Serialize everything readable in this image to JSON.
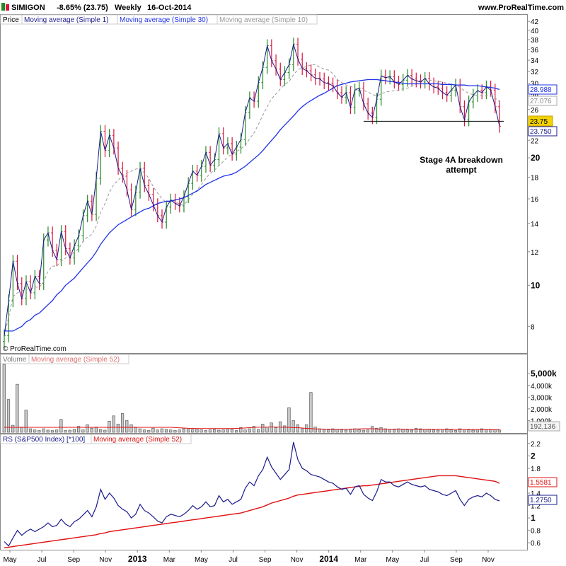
{
  "header": {
    "symbol": "SIMIGON",
    "change": "-8.65% (23.75)",
    "period": "Weekly",
    "date": "16-Oct-2014",
    "site": "www.ProRealTime.com"
  },
  "price_panel": {
    "legend": [
      "Price",
      "Moving average (Simple 1)",
      "Moving average (Simple 30)",
      "Moving average (Simple 10)"
    ],
    "copyright": "© ProRealTime.com",
    "annotation": [
      "Stage 4A breakdown",
      "attempt"
    ],
    "badges": [
      "28.988",
      "27.076",
      "23.75",
      "23.750"
    ]
  },
  "volume_panel": {
    "legend": [
      "Volume",
      "Moving average (Simple 52)"
    ],
    "badge": "192,136"
  },
  "rs_panel": {
    "legend": [
      "RS (S&P500 Index) [*100]",
      "Moving average (Simple 52)"
    ],
    "badges": [
      "1.5581",
      "1.2750"
    ]
  },
  "x_axis": {
    "labels": [
      "May",
      "Jul",
      "Sep",
      "Nov",
      "2013",
      "Mar",
      "May",
      "Jul",
      "Sep",
      "Nov",
      "2014",
      "Mar",
      "May",
      "Jul",
      "Sep",
      "Nov"
    ]
  },
  "colors": {
    "up": "#228b22",
    "down": "#dc143c",
    "ma30": "#1e32e6",
    "ma10": "#999999",
    "rs": "#1a1a8c",
    "rs_ma": "#e01010"
  },
  "chart_data": [
    {
      "type": "candlestick",
      "title": "SIMIGON Weekly",
      "yscale": "log",
      "ylim": [
        7,
        43
      ],
      "yticks": [
        8,
        10,
        12,
        14,
        16,
        18,
        20,
        22,
        24,
        26,
        28,
        30,
        32,
        34,
        36,
        38,
        40,
        42
      ],
      "support_level": 24.4,
      "close": [
        7.6,
        9.2,
        11.4,
        10.1,
        9.3,
        10.2,
        9.6,
        10.5,
        10.1,
        12.8,
        13.3,
        12.1,
        11.5,
        13.4,
        12.2,
        11.6,
        12.4,
        13.1,
        14.6,
        15.8,
        14.7,
        17.9,
        23.1,
        20.8,
        22.6,
        21.1,
        18.9,
        18.1,
        16.8,
        15.1,
        16.6,
        18.9,
        17.2,
        16.4,
        15.5,
        14.6,
        14.1,
        15.3,
        15.9,
        15.6,
        15.4,
        16.2,
        17.4,
        18.6,
        18.2,
        19.1,
        20.6,
        19.2,
        19.8,
        22.8,
        21.1,
        21.6,
        20.4,
        21.2,
        22.1,
        25.6,
        27.7,
        27.2,
        30.1,
        32.7,
        36.8,
        33.9,
        32.4,
        30.6,
        31.8,
        33.2,
        37.1,
        34.2,
        32.5,
        32.1,
        31.4,
        30.8,
        30.7,
        30.1,
        29.9,
        29.6,
        28.5,
        27.8,
        28.5,
        26.3,
        28.9,
        29.2,
        26.8,
        25.5,
        24.9,
        27.5,
        31.2,
        30.9,
        31.1,
        30.2,
        29.8,
        30.5,
        31.3,
        30.7,
        30.4,
        30.2,
        30.8,
        29.9,
        29.4,
        29.2,
        28.5,
        28.1,
        28.9,
        29.7,
        26.4,
        24.6,
        27.1,
        28.1,
        28.8,
        28.5,
        29.4,
        28.9,
        26.4,
        23.75
      ],
      "ma10": [
        7.6,
        8.4,
        9.4,
        9.6,
        9.7,
        9.8,
        9.8,
        9.9,
        9.9,
        10.2,
        10.8,
        11.1,
        11.1,
        11.4,
        11.6,
        11.7,
        12.0,
        12.2,
        12.7,
        13.0,
        13.2,
        13.8,
        14.9,
        15.6,
        16.6,
        17.3,
        17.7,
        18.2,
        18.4,
        18.6,
        18.8,
        18.9,
        18.4,
        17.9,
        17.1,
        16.5,
        16.0,
        15.7,
        15.8,
        15.8,
        15.5,
        15.5,
        15.9,
        16.4,
        16.8,
        17.3,
        17.9,
        18.4,
        18.7,
        19.2,
        19.6,
        20.1,
        20.4,
        20.7,
        21.0,
        21.4,
        22.2,
        22.9,
        24.0,
        25.2,
        26.4,
        27.6,
        28.3,
        29.1,
        29.8,
        30.3,
        31.4,
        32.3,
        32.6,
        32.9,
        33.1,
        33.2,
        32.7,
        32.4,
        32.2,
        31.6,
        30.6,
        30.1,
        29.7,
        29.5,
        29.2,
        28.9,
        28.8,
        28.6,
        28.2,
        28.0,
        28.3,
        28.6,
        28.7,
        28.8,
        28.9,
        29.1,
        29.2,
        29.5,
        29.9,
        30.4,
        30.6,
        30.5,
        30.4,
        30.3,
        30.2,
        30.0,
        29.8,
        29.7,
        29.3,
        28.8,
        28.4,
        28.2,
        28.1,
        28.0,
        28.0,
        28.0,
        27.7,
        27.1
      ],
      "ma30": [
        7.8,
        7.8,
        7.8,
        7.9,
        8.0,
        8.2,
        8.3,
        8.5,
        8.6,
        8.8,
        9.0,
        9.2,
        9.5,
        9.7,
        10.0,
        10.2,
        10.4,
        10.7,
        11.0,
        11.3,
        11.6,
        12.0,
        12.5,
        12.9,
        13.3,
        13.6,
        13.9,
        14.1,
        14.3,
        14.5,
        14.7,
        14.9,
        15.1,
        15.2,
        15.4,
        15.6,
        15.7,
        15.8,
        15.8,
        15.9,
        16.0,
        16.1,
        16.3,
        16.5,
        16.7,
        17.0,
        17.3,
        17.5,
        17.7,
        17.9,
        18.1,
        18.2,
        18.3,
        18.5,
        18.8,
        19.1,
        19.5,
        19.9,
        20.3,
        20.8,
        21.4,
        22.0,
        22.6,
        23.3,
        23.9,
        24.5,
        25.1,
        25.8,
        26.4,
        26.9,
        27.3,
        27.7,
        28.1,
        28.4,
        28.8,
        29.2,
        29.6,
        29.8,
        30.0,
        30.2,
        30.3,
        30.4,
        30.5,
        30.6,
        30.6,
        30.6,
        30.5,
        30.4,
        30.3,
        30.2,
        30.1,
        30.0,
        29.9,
        29.9,
        29.9,
        29.9,
        29.9,
        29.9,
        29.9,
        29.9,
        29.8,
        29.8,
        29.8,
        29.7,
        29.7,
        29.7,
        29.6,
        29.6,
        29.6,
        29.5,
        29.4,
        29.3,
        29.2,
        28.988
      ]
    },
    {
      "type": "bar",
      "title": "Volume",
      "ylim": [
        0,
        5800
      ],
      "yticks": [
        1000,
        2000,
        3000,
        4000,
        5000
      ],
      "ytick_labels": [
        "1,000k",
        "2,000k",
        "3,000k",
        "4,000k",
        "5,000k"
      ],
      "values": [
        5800,
        2800,
        600,
        4100,
        450,
        1900,
        300,
        200,
        150,
        300,
        180,
        140,
        200,
        1100,
        150,
        180,
        250,
        500,
        200,
        650,
        350,
        450,
        250,
        180,
        950,
        1400,
        700,
        1600,
        1000,
        650,
        450,
        300,
        200,
        150,
        350,
        200,
        300,
        250,
        200,
        150,
        200,
        300,
        250,
        220,
        300,
        200,
        150,
        200,
        250,
        180,
        200,
        300,
        250,
        150,
        400,
        200,
        300,
        500,
        250,
        700,
        450,
        800,
        400,
        900,
        550,
        2100,
        1000,
        650,
        300,
        650,
        3400,
        450,
        300,
        250,
        200,
        300,
        250,
        200,
        180,
        250,
        300,
        220,
        180,
        200,
        500,
        350,
        400,
        300,
        250,
        200,
        300,
        250,
        200,
        180,
        350,
        300,
        250,
        220,
        200,
        180,
        250,
        300,
        200,
        150,
        300,
        250,
        200,
        180,
        250,
        300,
        200,
        250,
        220,
        192
      ],
      "ma52": [
        420,
        420,
        420,
        420,
        420,
        420,
        420,
        420,
        420,
        420,
        420,
        420,
        420,
        420,
        420,
        420,
        420,
        420,
        420,
        420,
        420,
        420,
        420,
        420,
        420,
        420,
        420,
        420,
        420,
        420,
        420,
        420,
        420,
        420,
        420,
        420,
        420,
        420,
        420,
        400,
        380,
        360,
        340,
        330,
        320,
        320,
        320,
        320,
        320,
        320,
        320,
        320,
        320,
        330,
        350,
        370,
        390,
        420,
        430,
        440,
        450,
        460,
        450,
        440,
        430,
        420,
        400,
        390,
        360,
        330,
        310,
        290,
        280,
        270,
        260,
        250,
        250,
        250,
        260,
        270,
        280,
        290,
        300,
        300,
        300,
        290,
        280,
        270,
        260,
        260,
        270,
        270,
        260,
        250,
        240,
        240,
        250,
        250,
        240,
        240,
        240,
        240,
        240,
        240,
        240,
        240,
        240,
        240,
        240,
        230,
        230,
        230,
        230,
        230
      ]
    },
    {
      "type": "line",
      "title": "RS (S&P500 Index) [*100]",
      "ylim": [
        0.5,
        2.3
      ],
      "yticks": [
        0.6,
        0.8,
        1.0,
        1.2,
        1.4,
        1.6,
        1.8,
        2.0,
        2.2
      ],
      "series": [
        {
          "name": "RS (S&P500 Index) [*100]",
          "values": [
            0.62,
            0.55,
            0.68,
            0.8,
            0.72,
            0.78,
            0.82,
            0.78,
            0.82,
            0.86,
            0.92,
            0.86,
            0.88,
            0.98,
            0.9,
            0.86,
            0.94,
            0.98,
            1.05,
            1.12,
            1.02,
            1.18,
            1.46,
            1.3,
            1.4,
            1.32,
            1.2,
            1.14,
            1.1,
            1.0,
            1.06,
            1.22,
            1.12,
            1.08,
            1.02,
            0.95,
            0.92,
            1.02,
            1.06,
            1.04,
            1.02,
            1.06,
            1.12,
            1.2,
            1.14,
            1.18,
            1.26,
            1.18,
            1.2,
            1.36,
            1.26,
            1.3,
            1.22,
            1.26,
            1.3,
            1.48,
            1.58,
            1.52,
            1.68,
            1.78,
            1.98,
            1.82,
            1.72,
            1.62,
            1.7,
            1.78,
            2.22,
            1.94,
            1.8,
            1.76,
            1.7,
            1.68,
            1.66,
            1.62,
            1.58,
            1.56,
            1.5,
            1.46,
            1.48,
            1.38,
            1.5,
            1.52,
            1.38,
            1.32,
            1.28,
            1.42,
            1.62,
            1.58,
            1.58,
            1.52,
            1.5,
            1.54,
            1.58,
            1.54,
            1.52,
            1.5,
            1.52,
            1.46,
            1.44,
            1.42,
            1.38,
            1.36,
            1.4,
            1.44,
            1.3,
            1.2,
            1.3,
            1.34,
            1.36,
            1.34,
            1.4,
            1.36,
            1.3,
            1.275
          ]
        },
        {
          "name": "Moving average (Simple 52)",
          "values": [
            0.52,
            0.53,
            0.54,
            0.55,
            0.56,
            0.57,
            0.58,
            0.59,
            0.6,
            0.61,
            0.62,
            0.63,
            0.64,
            0.65,
            0.66,
            0.67,
            0.68,
            0.69,
            0.7,
            0.71,
            0.72,
            0.73,
            0.75,
            0.76,
            0.78,
            0.79,
            0.8,
            0.81,
            0.82,
            0.83,
            0.84,
            0.85,
            0.86,
            0.87,
            0.88,
            0.89,
            0.9,
            0.91,
            0.92,
            0.93,
            0.94,
            0.95,
            0.96,
            0.97,
            0.98,
            0.99,
            1.0,
            1.01,
            1.02,
            1.03,
            1.04,
            1.05,
            1.06,
            1.07,
            1.08,
            1.1,
            1.12,
            1.14,
            1.16,
            1.18,
            1.21,
            1.24,
            1.26,
            1.28,
            1.3,
            1.32,
            1.35,
            1.37,
            1.38,
            1.39,
            1.4,
            1.41,
            1.42,
            1.43,
            1.44,
            1.45,
            1.46,
            1.47,
            1.48,
            1.49,
            1.5,
            1.51,
            1.52,
            1.52,
            1.53,
            1.54,
            1.55,
            1.56,
            1.57,
            1.58,
            1.59,
            1.6,
            1.61,
            1.62,
            1.63,
            1.64,
            1.65,
            1.66,
            1.67,
            1.68,
            1.68,
            1.68,
            1.68,
            1.68,
            1.67,
            1.66,
            1.65,
            1.64,
            1.63,
            1.62,
            1.61,
            1.6,
            1.59,
            1.5581
          ]
        }
      ]
    }
  ]
}
